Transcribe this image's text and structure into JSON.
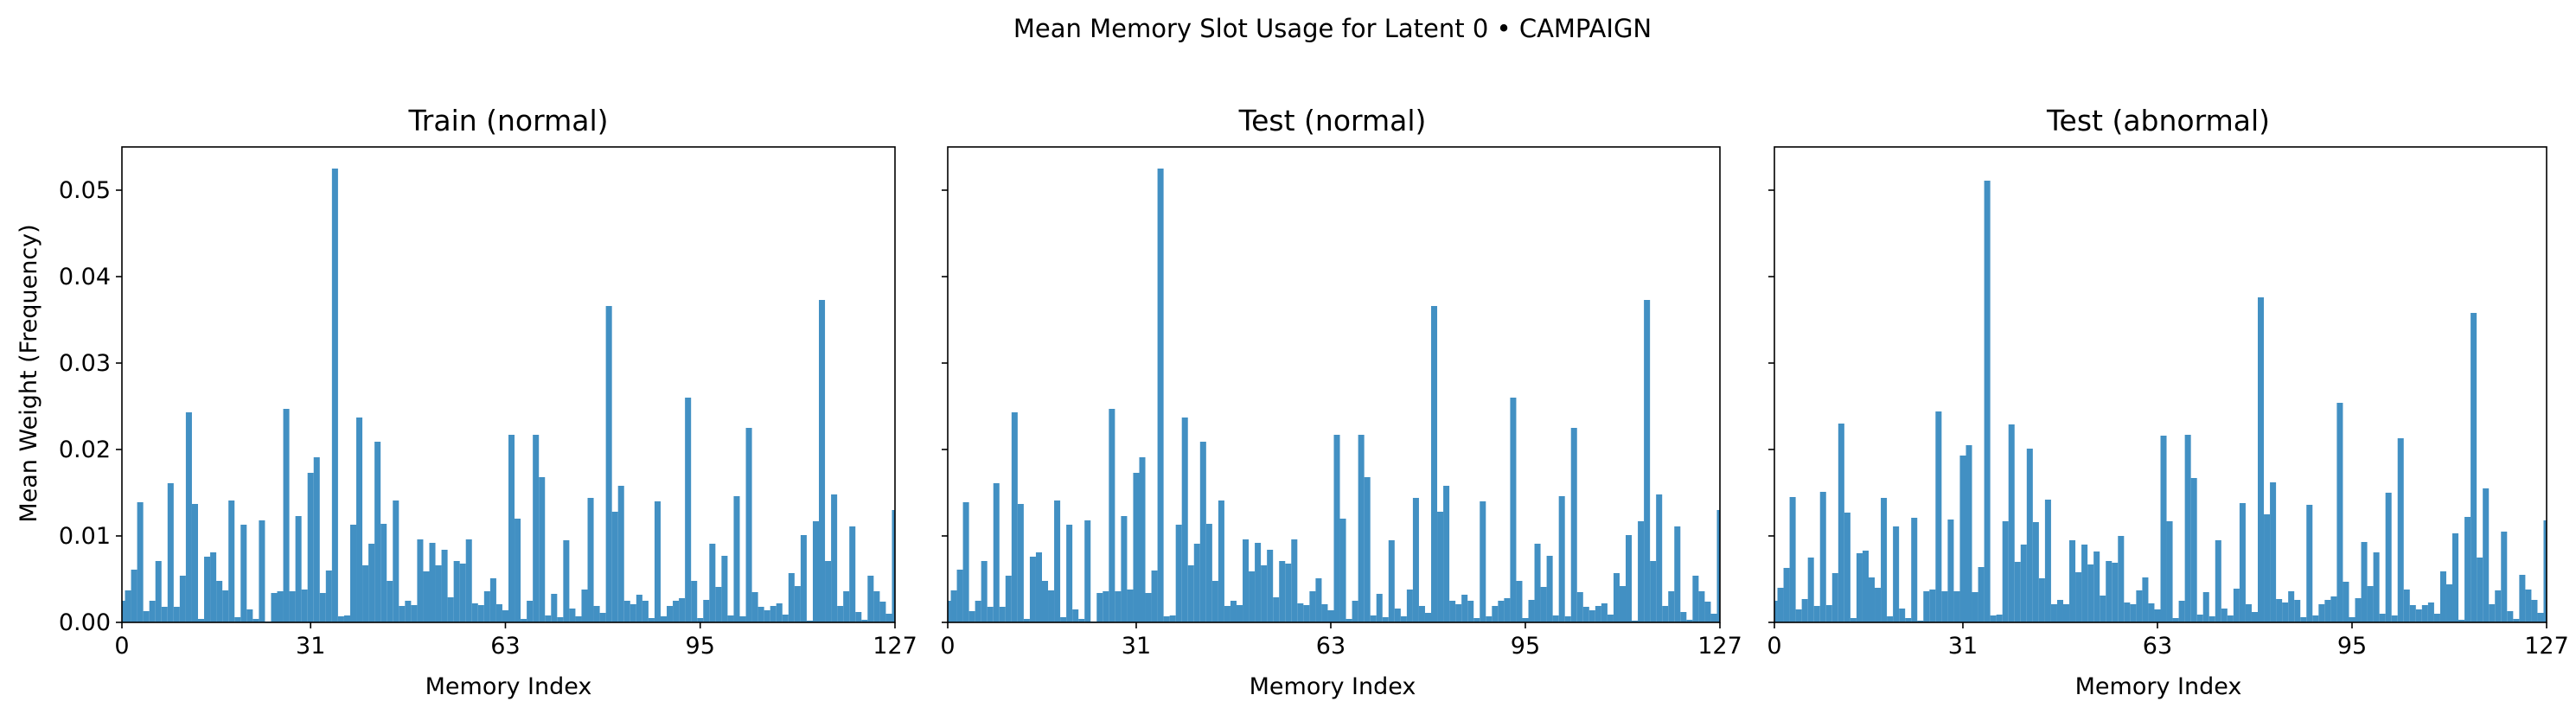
{
  "figure": {
    "suptitle": "Mean Memory Slot Usage for Latent 0 • CAMPAIGN",
    "bar_color": "#4290C3",
    "axes_color": "#000000"
  },
  "chart_data": [
    {
      "type": "bar",
      "title": "Train (normal)",
      "xlabel": "Memory Index",
      "ylabel": "Mean Weight (Frequency)",
      "xlim": [
        0,
        127
      ],
      "ylim": [
        0,
        0.055
      ],
      "xticks": [
        0,
        31,
        63,
        95,
        127
      ],
      "xtick_labels": [
        "0",
        "31",
        "63",
        "95",
        "127"
      ],
      "yticks": [
        0,
        0.01,
        0.02,
        0.03,
        0.04,
        0.05
      ],
      "ytick_labels": [
        "0.00",
        "0.01",
        "0.02",
        "0.03",
        "0.04",
        "0.05"
      ],
      "grid": false,
      "categories": [
        0,
        1,
        2,
        3,
        4,
        5,
        6,
        7,
        8,
        9,
        10,
        11,
        12,
        13,
        14,
        15,
        16,
        17,
        18,
        19,
        20,
        21,
        22,
        23,
        24,
        25,
        26,
        27,
        28,
        29,
        30,
        31,
        32,
        33,
        34,
        35,
        36,
        37,
        38,
        39,
        40,
        41,
        42,
        43,
        44,
        45,
        46,
        47,
        48,
        49,
        50,
        51,
        52,
        53,
        54,
        55,
        56,
        57,
        58,
        59,
        60,
        61,
        62,
        63,
        64,
        65,
        66,
        67,
        68,
        69,
        70,
        71,
        72,
        73,
        74,
        75,
        76,
        77,
        78,
        79,
        80,
        81,
        82,
        83,
        84,
        85,
        86,
        87,
        88,
        89,
        90,
        91,
        92,
        93,
        94,
        95,
        96,
        97,
        98,
        99,
        100,
        101,
        102,
        103,
        104,
        105,
        106,
        107,
        108,
        109,
        110,
        111,
        112,
        113,
        114,
        115,
        116,
        117,
        118,
        119,
        120,
        121,
        122,
        123,
        124,
        125,
        126,
        127
      ],
      "values": [
        0.0025,
        0.0037,
        0.0061,
        0.0139,
        0.0013,
        0.0025,
        0.0071,
        0.0018,
        0.0161,
        0.0018,
        0.0054,
        0.0243,
        0.0137,
        0.0004,
        0.0076,
        0.0081,
        0.0048,
        0.0037,
        0.0141,
        0.0006,
        0.0113,
        0.0015,
        0.0004,
        0.0118,
        0.0001,
        0.0034,
        0.0036,
        0.0247,
        0.0036,
        0.0123,
        0.0038,
        0.0173,
        0.0191,
        0.0034,
        0.006,
        0.0525,
        0.0007,
        0.0008,
        0.0113,
        0.0237,
        0.0066,
        0.0091,
        0.0209,
        0.0114,
        0.0048,
        0.0141,
        0.0019,
        0.0025,
        0.002,
        0.0096,
        0.0059,
        0.0092,
        0.0066,
        0.0084,
        0.0029,
        0.0071,
        0.0068,
        0.0096,
        0.0022,
        0.002,
        0.0036,
        0.0051,
        0.0021,
        0.0014,
        0.0217,
        0.012,
        0.0004,
        0.0025,
        0.0217,
        0.0168,
        0.0008,
        0.0033,
        0.0006,
        0.0095,
        0.0016,
        0.0007,
        0.0038,
        0.0144,
        0.0019,
        0.0011,
        0.0366,
        0.0128,
        0.0158,
        0.0025,
        0.0021,
        0.0032,
        0.0025,
        0.0005,
        0.014,
        0.0007,
        0.0019,
        0.0025,
        0.0028,
        0.026,
        0.0048,
        0.0005,
        0.0026,
        0.0091,
        0.0041,
        0.0077,
        0.0008,
        0.0146,
        0.0007,
        0.0225,
        0.0035,
        0.0018,
        0.0014,
        0.0019,
        0.0022,
        0.0009,
        0.0057,
        0.0042,
        0.0101,
        0.0002,
        0.0117,
        0.0373,
        0.0071,
        0.0148,
        0.0019,
        0.0036,
        0.0111,
        0.0012,
        0.0003,
        0.0054,
        0.0036,
        0.0024,
        0.001,
        0.013
      ]
    },
    {
      "type": "bar",
      "title": "Test (normal)",
      "xlabel": "Memory Index",
      "ylabel": "",
      "xlim": [
        0,
        127
      ],
      "ylim": [
        0,
        0.055
      ],
      "xticks": [
        0,
        31,
        63,
        95,
        127
      ],
      "xtick_labels": [
        "0",
        "31",
        "63",
        "95",
        "127"
      ],
      "yticks": [
        0,
        0.01,
        0.02,
        0.03,
        0.04,
        0.05
      ],
      "ytick_labels": [],
      "grid": false,
      "categories": [
        0,
        1,
        2,
        3,
        4,
        5,
        6,
        7,
        8,
        9,
        10,
        11,
        12,
        13,
        14,
        15,
        16,
        17,
        18,
        19,
        20,
        21,
        22,
        23,
        24,
        25,
        26,
        27,
        28,
        29,
        30,
        31,
        32,
        33,
        34,
        35,
        36,
        37,
        38,
        39,
        40,
        41,
        42,
        43,
        44,
        45,
        46,
        47,
        48,
        49,
        50,
        51,
        52,
        53,
        54,
        55,
        56,
        57,
        58,
        59,
        60,
        61,
        62,
        63,
        64,
        65,
        66,
        67,
        68,
        69,
        70,
        71,
        72,
        73,
        74,
        75,
        76,
        77,
        78,
        79,
        80,
        81,
        82,
        83,
        84,
        85,
        86,
        87,
        88,
        89,
        90,
        91,
        92,
        93,
        94,
        95,
        96,
        97,
        98,
        99,
        100,
        101,
        102,
        103,
        104,
        105,
        106,
        107,
        108,
        109,
        110,
        111,
        112,
        113,
        114,
        115,
        116,
        117,
        118,
        119,
        120,
        121,
        122,
        123,
        124,
        125,
        126,
        127
      ],
      "values": [
        0.0025,
        0.0037,
        0.0061,
        0.0139,
        0.0013,
        0.0025,
        0.0071,
        0.0018,
        0.0161,
        0.0018,
        0.0054,
        0.0243,
        0.0137,
        0.0004,
        0.0076,
        0.0081,
        0.0048,
        0.0037,
        0.0141,
        0.0006,
        0.0113,
        0.0015,
        0.0004,
        0.0118,
        0.0001,
        0.0034,
        0.0036,
        0.0247,
        0.0036,
        0.0123,
        0.0038,
        0.0173,
        0.0191,
        0.0034,
        0.006,
        0.0525,
        0.0007,
        0.0008,
        0.0113,
        0.0237,
        0.0066,
        0.0091,
        0.0209,
        0.0114,
        0.0048,
        0.0141,
        0.0019,
        0.0025,
        0.002,
        0.0096,
        0.0059,
        0.0092,
        0.0066,
        0.0084,
        0.0029,
        0.0071,
        0.0068,
        0.0096,
        0.0022,
        0.002,
        0.0036,
        0.0051,
        0.0021,
        0.0014,
        0.0217,
        0.012,
        0.0004,
        0.0025,
        0.0217,
        0.0168,
        0.0008,
        0.0033,
        0.0006,
        0.0095,
        0.0016,
        0.0007,
        0.0038,
        0.0144,
        0.0019,
        0.0011,
        0.0366,
        0.0128,
        0.0158,
        0.0025,
        0.0021,
        0.0032,
        0.0025,
        0.0005,
        0.014,
        0.0007,
        0.0019,
        0.0025,
        0.0028,
        0.026,
        0.0048,
        0.0005,
        0.0026,
        0.0091,
        0.0041,
        0.0077,
        0.0008,
        0.0146,
        0.0007,
        0.0225,
        0.0035,
        0.0018,
        0.0014,
        0.0019,
        0.0022,
        0.0009,
        0.0057,
        0.0042,
        0.0101,
        0.0002,
        0.0117,
        0.0373,
        0.0071,
        0.0148,
        0.0019,
        0.0036,
        0.0111,
        0.0012,
        0.0003,
        0.0054,
        0.0036,
        0.0024,
        0.001,
        0.013
      ]
    },
    {
      "type": "bar",
      "title": "Test (abnormal)",
      "xlabel": "Memory Index",
      "ylabel": "",
      "xlim": [
        0,
        127
      ],
      "ylim": [
        0,
        0.055
      ],
      "xticks": [
        0,
        31,
        63,
        95,
        127
      ],
      "xtick_labels": [
        "0",
        "31",
        "63",
        "95",
        "127"
      ],
      "yticks": [
        0,
        0.01,
        0.02,
        0.03,
        0.04,
        0.05
      ],
      "ytick_labels": [],
      "grid": false,
      "categories": [
        0,
        1,
        2,
        3,
        4,
        5,
        6,
        7,
        8,
        9,
        10,
        11,
        12,
        13,
        14,
        15,
        16,
        17,
        18,
        19,
        20,
        21,
        22,
        23,
        24,
        25,
        26,
        27,
        28,
        29,
        30,
        31,
        32,
        33,
        34,
        35,
        36,
        37,
        38,
        39,
        40,
        41,
        42,
        43,
        44,
        45,
        46,
        47,
        48,
        49,
        50,
        51,
        52,
        53,
        54,
        55,
        56,
        57,
        58,
        59,
        60,
        61,
        62,
        63,
        64,
        65,
        66,
        67,
        68,
        69,
        70,
        71,
        72,
        73,
        74,
        75,
        76,
        77,
        78,
        79,
        80,
        81,
        82,
        83,
        84,
        85,
        86,
        87,
        88,
        89,
        90,
        91,
        92,
        93,
        94,
        95,
        96,
        97,
        98,
        99,
        100,
        101,
        102,
        103,
        104,
        105,
        106,
        107,
        108,
        109,
        110,
        111,
        112,
        113,
        114,
        115,
        116,
        117,
        118,
        119,
        120,
        121,
        122,
        123,
        124,
        125,
        126,
        127
      ],
      "values": [
        0.0025,
        0.004,
        0.0063,
        0.0145,
        0.0015,
        0.0027,
        0.0075,
        0.0019,
        0.0151,
        0.002,
        0.0057,
        0.023,
        0.0127,
        0.0005,
        0.008,
        0.0083,
        0.0052,
        0.004,
        0.0144,
        0.0007,
        0.0111,
        0.0016,
        0.0005,
        0.0121,
        0.0002,
        0.0036,
        0.0038,
        0.0244,
        0.0036,
        0.0119,
        0.0036,
        0.0193,
        0.0205,
        0.0035,
        0.0064,
        0.0511,
        0.0008,
        0.0009,
        0.0117,
        0.0229,
        0.007,
        0.009,
        0.0201,
        0.0116,
        0.0051,
        0.0142,
        0.0021,
        0.0026,
        0.0021,
        0.0095,
        0.0058,
        0.009,
        0.0067,
        0.0082,
        0.0031,
        0.0071,
        0.0069,
        0.01,
        0.0023,
        0.0021,
        0.0037,
        0.0052,
        0.0022,
        0.0015,
        0.0216,
        0.0117,
        0.0005,
        0.0025,
        0.0217,
        0.0167,
        0.0009,
        0.0035,
        0.0007,
        0.0095,
        0.0016,
        0.0008,
        0.0039,
        0.0138,
        0.0021,
        0.0012,
        0.0376,
        0.0125,
        0.0162,
        0.0027,
        0.0023,
        0.0036,
        0.0026,
        0.0006,
        0.0136,
        0.0008,
        0.0021,
        0.0026,
        0.003,
        0.0254,
        0.0047,
        0.0006,
        0.0028,
        0.0093,
        0.0042,
        0.0081,
        0.001,
        0.015,
        0.0008,
        0.0213,
        0.0038,
        0.002,
        0.0015,
        0.002,
        0.0023,
        0.001,
        0.0059,
        0.0044,
        0.0103,
        0.0003,
        0.0122,
        0.0358,
        0.0075,
        0.0155,
        0.0021,
        0.0037,
        0.0105,
        0.0013,
        0.0004,
        0.0055,
        0.0038,
        0.0026,
        0.0011,
        0.0118
      ]
    }
  ]
}
